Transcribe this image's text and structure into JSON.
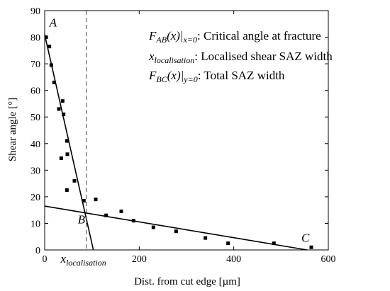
{
  "chart_data": {
    "type": "scatter",
    "xlabel": "Dist. from cut edge [µm]",
    "ylabel": "Shear angle [°]",
    "xlim": [
      0,
      600
    ],
    "ylim": [
      0,
      90
    ],
    "xticks": [
      0,
      200,
      400,
      600
    ],
    "yticks": [
      0,
      10,
      20,
      30,
      40,
      50,
      60,
      70,
      80,
      90
    ],
    "grid": false,
    "points": [
      {
        "x": 3,
        "y": 80
      },
      {
        "x": 10,
        "y": 76.5
      },
      {
        "x": 14,
        "y": 69.5
      },
      {
        "x": 20,
        "y": 63
      },
      {
        "x": 30,
        "y": 53
      },
      {
        "x": 38,
        "y": 56
      },
      {
        "x": 40,
        "y": 51
      },
      {
        "x": 35,
        "y": 34.5
      },
      {
        "x": 47,
        "y": 41
      },
      {
        "x": 48,
        "y": 36
      },
      {
        "x": 47,
        "y": 22.5
      },
      {
        "x": 63,
        "y": 26
      },
      {
        "x": 83,
        "y": 18.5
      },
      {
        "x": 108,
        "y": 19
      },
      {
        "x": 130,
        "y": 13
      },
      {
        "x": 162,
        "y": 14.5
      },
      {
        "x": 188,
        "y": 11
      },
      {
        "x": 230,
        "y": 8.5
      },
      {
        "x": 278,
        "y": 7
      },
      {
        "x": 340,
        "y": 4.5
      },
      {
        "x": 388,
        "y": 2.5
      },
      {
        "x": 485,
        "y": 2.5
      },
      {
        "x": 564,
        "y": 1
      }
    ],
    "lines": [
      {
        "name": "AB",
        "from": [
          0,
          81
        ],
        "to": [
          103,
          0
        ]
      },
      {
        "name": "BC",
        "from": [
          0,
          16.5
        ],
        "to": [
          555,
          0
        ]
      }
    ],
    "dashed_x": 88,
    "point_labels": [
      {
        "text": "A",
        "x": 10,
        "y": 84
      },
      {
        "text": "B",
        "x": 70,
        "y": 10
      },
      {
        "text": "C",
        "x": 543,
        "y": 3
      }
    ],
    "x_annotation": {
      "x": 88
    },
    "legend": {
      "line1": {
        "main": "F",
        "sub": "AB",
        "fn": "(x)|",
        "cond": "x=0",
        "desc": ": Critical angle at fracture"
      },
      "line2": {
        "main": "x",
        "sub": "localisation",
        "desc": ": Localised shear SAZ width"
      },
      "line3": {
        "main": "F",
        "sub": "BC",
        "fn": "(x)|",
        "cond": "y=0",
        "desc": ": Total SAZ width"
      }
    },
    "x_annotation_text": {
      "main": "x",
      "sub": "localisation"
    }
  }
}
